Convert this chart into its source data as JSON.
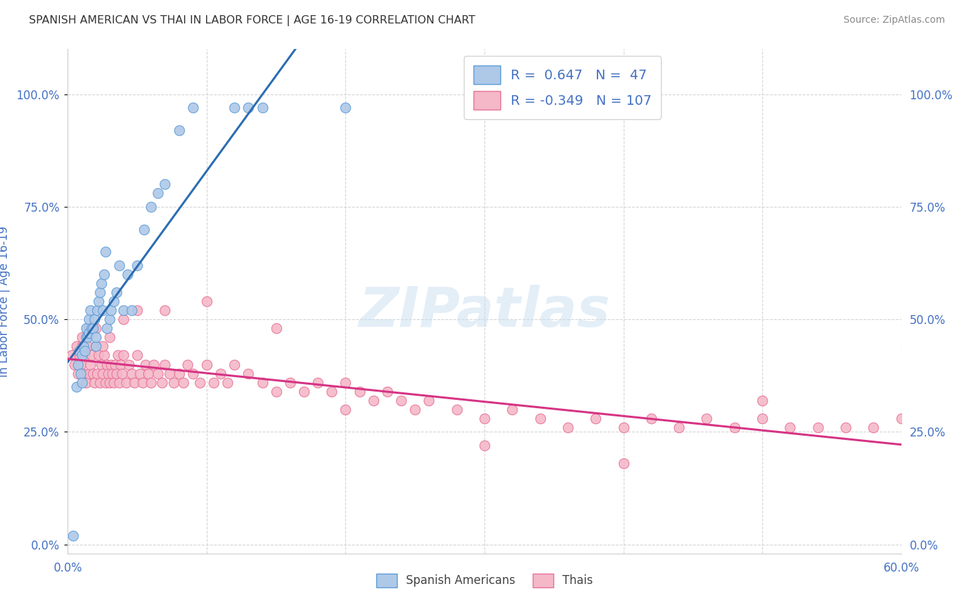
{
  "title": "SPANISH AMERICAN VS THAI IN LABOR FORCE | AGE 16-19 CORRELATION CHART",
  "source": "Source: ZipAtlas.com",
  "ylabel": "In Labor Force | Age 16-19",
  "ytick_labels": [
    "0.0%",
    "25.0%",
    "50.0%",
    "75.0%",
    "100.0%"
  ],
  "ytick_values": [
    0.0,
    0.25,
    0.5,
    0.75,
    1.0
  ],
  "xlim": [
    0.0,
    0.6
  ],
  "ylim": [
    -0.02,
    1.1
  ],
  "watermark_text": "ZIPatlas",
  "blue_scatter_x": [
    0.004,
    0.006,
    0.007,
    0.008,
    0.009,
    0.01,
    0.01,
    0.011,
    0.012,
    0.013,
    0.013,
    0.014,
    0.015,
    0.015,
    0.016,
    0.017,
    0.018,
    0.019,
    0.02,
    0.02,
    0.021,
    0.022,
    0.023,
    0.024,
    0.025,
    0.026,
    0.027,
    0.028,
    0.03,
    0.031,
    0.033,
    0.035,
    0.037,
    0.04,
    0.043,
    0.046,
    0.05,
    0.055,
    0.06,
    0.065,
    0.07,
    0.08,
    0.09,
    0.12,
    0.13,
    0.14,
    0.2
  ],
  "blue_scatter_y": [
    0.02,
    0.35,
    0.4,
    0.43,
    0.38,
    0.36,
    0.42,
    0.44,
    0.43,
    0.46,
    0.48,
    0.46,
    0.47,
    0.5,
    0.52,
    0.48,
    0.48,
    0.5,
    0.44,
    0.46,
    0.52,
    0.54,
    0.56,
    0.58,
    0.52,
    0.6,
    0.65,
    0.48,
    0.5,
    0.52,
    0.54,
    0.56,
    0.62,
    0.52,
    0.6,
    0.52,
    0.62,
    0.7,
    0.75,
    0.78,
    0.8,
    0.92,
    0.97,
    0.97,
    0.97,
    0.97,
    0.97
  ],
  "pink_scatter_x": [
    0.003,
    0.005,
    0.006,
    0.007,
    0.008,
    0.009,
    0.01,
    0.011,
    0.012,
    0.013,
    0.014,
    0.015,
    0.016,
    0.017,
    0.018,
    0.019,
    0.02,
    0.021,
    0.022,
    0.023,
    0.024,
    0.025,
    0.026,
    0.027,
    0.028,
    0.029,
    0.03,
    0.031,
    0.032,
    0.033,
    0.034,
    0.035,
    0.036,
    0.037,
    0.038,
    0.039,
    0.04,
    0.042,
    0.044,
    0.046,
    0.048,
    0.05,
    0.052,
    0.054,
    0.056,
    0.058,
    0.06,
    0.062,
    0.065,
    0.068,
    0.07,
    0.073,
    0.076,
    0.08,
    0.083,
    0.086,
    0.09,
    0.095,
    0.1,
    0.105,
    0.11,
    0.115,
    0.12,
    0.13,
    0.14,
    0.15,
    0.16,
    0.17,
    0.18,
    0.19,
    0.2,
    0.21,
    0.22,
    0.23,
    0.24,
    0.25,
    0.26,
    0.28,
    0.3,
    0.32,
    0.34,
    0.36,
    0.38,
    0.4,
    0.42,
    0.44,
    0.46,
    0.48,
    0.5,
    0.52,
    0.54,
    0.56,
    0.58,
    0.6,
    0.01,
    0.015,
    0.02,
    0.025,
    0.03,
    0.04,
    0.05,
    0.07,
    0.1,
    0.15,
    0.2,
    0.3,
    0.4,
    0.5
  ],
  "pink_scatter_y": [
    0.42,
    0.4,
    0.44,
    0.38,
    0.42,
    0.4,
    0.44,
    0.38,
    0.42,
    0.36,
    0.44,
    0.38,
    0.4,
    0.42,
    0.38,
    0.36,
    0.44,
    0.38,
    0.42,
    0.36,
    0.4,
    0.38,
    0.42,
    0.36,
    0.4,
    0.38,
    0.36,
    0.4,
    0.38,
    0.36,
    0.4,
    0.38,
    0.42,
    0.36,
    0.4,
    0.38,
    0.42,
    0.36,
    0.4,
    0.38,
    0.36,
    0.42,
    0.38,
    0.36,
    0.4,
    0.38,
    0.36,
    0.4,
    0.38,
    0.36,
    0.4,
    0.38,
    0.36,
    0.38,
    0.36,
    0.4,
    0.38,
    0.36,
    0.4,
    0.36,
    0.38,
    0.36,
    0.4,
    0.38,
    0.36,
    0.34,
    0.36,
    0.34,
    0.36,
    0.34,
    0.36,
    0.34,
    0.32,
    0.34,
    0.32,
    0.3,
    0.32,
    0.3,
    0.28,
    0.3,
    0.28,
    0.26,
    0.28,
    0.26,
    0.28,
    0.26,
    0.28,
    0.26,
    0.28,
    0.26,
    0.26,
    0.26,
    0.26,
    0.28,
    0.46,
    0.48,
    0.48,
    0.44,
    0.46,
    0.5,
    0.52,
    0.52,
    0.54,
    0.48,
    0.3,
    0.22,
    0.18,
    0.32
  ],
  "blue_color": "#aec8e8",
  "blue_edge_color": "#5b9bd5",
  "pink_color": "#f4b8c8",
  "pink_edge_color": "#e87096",
  "blue_line_color": "#2b6cb0",
  "pink_line_color": "#d63384",
  "grid_color": "#d0d0d0",
  "background_color": "#ffffff",
  "title_color": "#333333",
  "source_color": "#888888",
  "tick_color": "#4472c4",
  "ylabel_color": "#4472c4"
}
